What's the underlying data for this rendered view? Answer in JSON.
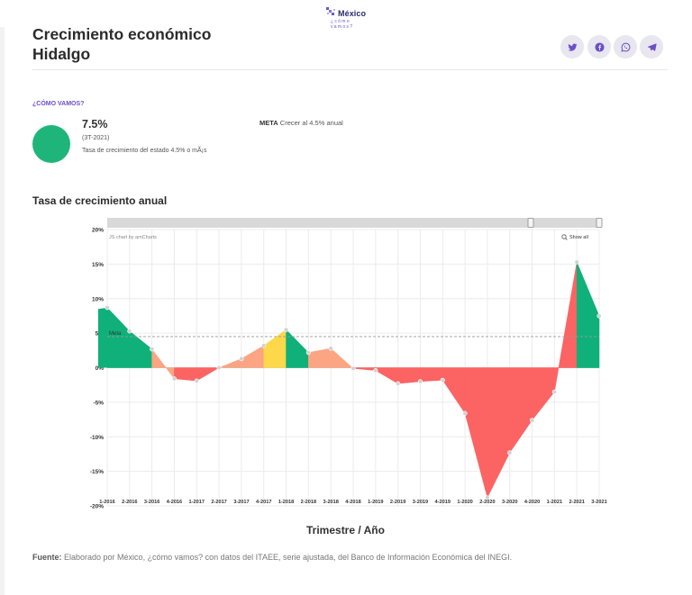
{
  "brand": {
    "name": "México",
    "tagline": "¿cómo vamos?"
  },
  "page": {
    "title_line1": "Crecimiento económico",
    "title_line2": "Hidalgo"
  },
  "share": [
    {
      "name": "twitter",
      "icon": "twitter-icon"
    },
    {
      "name": "facebook",
      "icon": "facebook-icon"
    },
    {
      "name": "whatsapp",
      "icon": "whatsapp-icon"
    },
    {
      "name": "telegram",
      "icon": "telegram-icon"
    }
  ],
  "kpi": {
    "heading": "¿CÓMO VAMOS?",
    "value": "7.5%",
    "period": "(3T-2021)",
    "description": "Tasa de crecimiento del estado 4.5% o mÃ¡s",
    "meta_label": "META",
    "meta_text": "Crecer al 4.5% anual",
    "status_color": "#1fb57a"
  },
  "chart_heading": "Tasa de crecimiento anual",
  "chart_data": {
    "type": "area",
    "title": "Tasa de crecimiento anual",
    "xlabel": "Trimestre / Año",
    "ylabel": "",
    "ylim": [
      -20,
      20
    ],
    "yticks": [
      -20,
      -15,
      -10,
      -5,
      0,
      5,
      10,
      15,
      20
    ],
    "ytick_labels": [
      "-20%",
      "-15%",
      "-10%",
      "-5%",
      "0%",
      "5%",
      "10%",
      "15%",
      "20%"
    ],
    "categories": [
      "1-2016",
      "2-2016",
      "3-2016",
      "4-2016",
      "1-2017",
      "2-2017",
      "3-2017",
      "4-2017",
      "1-2018",
      "2-2018",
      "3-2018",
      "4-2018",
      "1-2019",
      "2-2019",
      "3-2019",
      "4-2019",
      "1-2020",
      "2-2020",
      "3-2020",
      "4-2020",
      "1-2021",
      "2-2021",
      "3-2021"
    ],
    "values": [
      8.7,
      5.3,
      2.7,
      -1.6,
      -1.9,
      0.0,
      1.3,
      3.2,
      5.5,
      2.2,
      2.8,
      -0.1,
      -0.4,
      -2.3,
      -2.0,
      -1.8,
      -6.6,
      -18.8,
      -12.3,
      -7.6,
      -3.5,
      15.3,
      7.5
    ],
    "meta_value": 4.5,
    "meta_label": "Meta",
    "credit": "JS chart by amCharts",
    "show_all": "Show all",
    "colors": {
      "green": "#0fb07a",
      "orange": "#fba583",
      "yellow": "#fcd84a",
      "red": "#fb6463",
      "marker": "#cfd1d4"
    }
  },
  "source": {
    "label": "Fuente:",
    "text": "Elaborado por México, ¿cómo vamos? con datos del ITAEE, serie ajustada, del Banco de Información Económica del INEGI."
  }
}
